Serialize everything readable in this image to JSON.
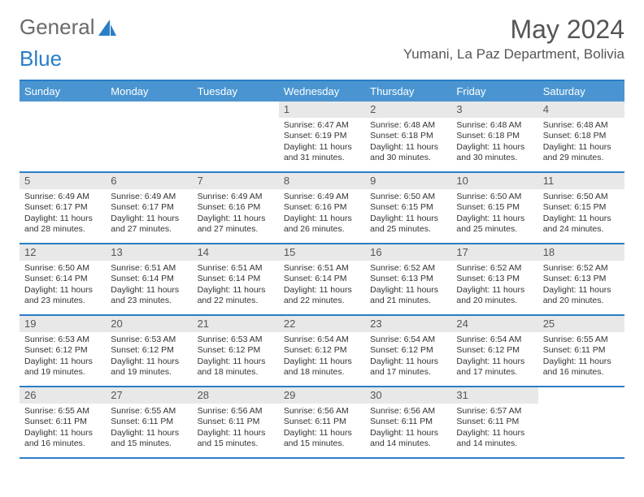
{
  "logo": {
    "text1": "General",
    "text2": "Blue"
  },
  "title": "May 2024",
  "location": "Yumani, La Paz Department, Bolivia",
  "colors": {
    "header_bg": "#4a95d1",
    "border": "#2a7ec6",
    "daynum_bg": "#e8e8e8",
    "text": "#333333",
    "title_text": "#555555",
    "logo_gray": "#6a6a6a",
    "logo_blue": "#2a7ec6"
  },
  "day_names": [
    "Sunday",
    "Monday",
    "Tuesday",
    "Wednesday",
    "Thursday",
    "Friday",
    "Saturday"
  ],
  "weeks": [
    [
      {
        "n": "",
        "sr": "",
        "ss": "",
        "dl": ""
      },
      {
        "n": "",
        "sr": "",
        "ss": "",
        "dl": ""
      },
      {
        "n": "",
        "sr": "",
        "ss": "",
        "dl": ""
      },
      {
        "n": "1",
        "sr": "Sunrise: 6:47 AM",
        "ss": "Sunset: 6:19 PM",
        "dl": "Daylight: 11 hours and 31 minutes."
      },
      {
        "n": "2",
        "sr": "Sunrise: 6:48 AM",
        "ss": "Sunset: 6:18 PM",
        "dl": "Daylight: 11 hours and 30 minutes."
      },
      {
        "n": "3",
        "sr": "Sunrise: 6:48 AM",
        "ss": "Sunset: 6:18 PM",
        "dl": "Daylight: 11 hours and 30 minutes."
      },
      {
        "n": "4",
        "sr": "Sunrise: 6:48 AM",
        "ss": "Sunset: 6:18 PM",
        "dl": "Daylight: 11 hours and 29 minutes."
      }
    ],
    [
      {
        "n": "5",
        "sr": "Sunrise: 6:49 AM",
        "ss": "Sunset: 6:17 PM",
        "dl": "Daylight: 11 hours and 28 minutes."
      },
      {
        "n": "6",
        "sr": "Sunrise: 6:49 AM",
        "ss": "Sunset: 6:17 PM",
        "dl": "Daylight: 11 hours and 27 minutes."
      },
      {
        "n": "7",
        "sr": "Sunrise: 6:49 AM",
        "ss": "Sunset: 6:16 PM",
        "dl": "Daylight: 11 hours and 27 minutes."
      },
      {
        "n": "8",
        "sr": "Sunrise: 6:49 AM",
        "ss": "Sunset: 6:16 PM",
        "dl": "Daylight: 11 hours and 26 minutes."
      },
      {
        "n": "9",
        "sr": "Sunrise: 6:50 AM",
        "ss": "Sunset: 6:15 PM",
        "dl": "Daylight: 11 hours and 25 minutes."
      },
      {
        "n": "10",
        "sr": "Sunrise: 6:50 AM",
        "ss": "Sunset: 6:15 PM",
        "dl": "Daylight: 11 hours and 25 minutes."
      },
      {
        "n": "11",
        "sr": "Sunrise: 6:50 AM",
        "ss": "Sunset: 6:15 PM",
        "dl": "Daylight: 11 hours and 24 minutes."
      }
    ],
    [
      {
        "n": "12",
        "sr": "Sunrise: 6:50 AM",
        "ss": "Sunset: 6:14 PM",
        "dl": "Daylight: 11 hours and 23 minutes."
      },
      {
        "n": "13",
        "sr": "Sunrise: 6:51 AM",
        "ss": "Sunset: 6:14 PM",
        "dl": "Daylight: 11 hours and 23 minutes."
      },
      {
        "n": "14",
        "sr": "Sunrise: 6:51 AM",
        "ss": "Sunset: 6:14 PM",
        "dl": "Daylight: 11 hours and 22 minutes."
      },
      {
        "n": "15",
        "sr": "Sunrise: 6:51 AM",
        "ss": "Sunset: 6:14 PM",
        "dl": "Daylight: 11 hours and 22 minutes."
      },
      {
        "n": "16",
        "sr": "Sunrise: 6:52 AM",
        "ss": "Sunset: 6:13 PM",
        "dl": "Daylight: 11 hours and 21 minutes."
      },
      {
        "n": "17",
        "sr": "Sunrise: 6:52 AM",
        "ss": "Sunset: 6:13 PM",
        "dl": "Daylight: 11 hours and 20 minutes."
      },
      {
        "n": "18",
        "sr": "Sunrise: 6:52 AM",
        "ss": "Sunset: 6:13 PM",
        "dl": "Daylight: 11 hours and 20 minutes."
      }
    ],
    [
      {
        "n": "19",
        "sr": "Sunrise: 6:53 AM",
        "ss": "Sunset: 6:12 PM",
        "dl": "Daylight: 11 hours and 19 minutes."
      },
      {
        "n": "20",
        "sr": "Sunrise: 6:53 AM",
        "ss": "Sunset: 6:12 PM",
        "dl": "Daylight: 11 hours and 19 minutes."
      },
      {
        "n": "21",
        "sr": "Sunrise: 6:53 AM",
        "ss": "Sunset: 6:12 PM",
        "dl": "Daylight: 11 hours and 18 minutes."
      },
      {
        "n": "22",
        "sr": "Sunrise: 6:54 AM",
        "ss": "Sunset: 6:12 PM",
        "dl": "Daylight: 11 hours and 18 minutes."
      },
      {
        "n": "23",
        "sr": "Sunrise: 6:54 AM",
        "ss": "Sunset: 6:12 PM",
        "dl": "Daylight: 11 hours and 17 minutes."
      },
      {
        "n": "24",
        "sr": "Sunrise: 6:54 AM",
        "ss": "Sunset: 6:12 PM",
        "dl": "Daylight: 11 hours and 17 minutes."
      },
      {
        "n": "25",
        "sr": "Sunrise: 6:55 AM",
        "ss": "Sunset: 6:11 PM",
        "dl": "Daylight: 11 hours and 16 minutes."
      }
    ],
    [
      {
        "n": "26",
        "sr": "Sunrise: 6:55 AM",
        "ss": "Sunset: 6:11 PM",
        "dl": "Daylight: 11 hours and 16 minutes."
      },
      {
        "n": "27",
        "sr": "Sunrise: 6:55 AM",
        "ss": "Sunset: 6:11 PM",
        "dl": "Daylight: 11 hours and 15 minutes."
      },
      {
        "n": "28",
        "sr": "Sunrise: 6:56 AM",
        "ss": "Sunset: 6:11 PM",
        "dl": "Daylight: 11 hours and 15 minutes."
      },
      {
        "n": "29",
        "sr": "Sunrise: 6:56 AM",
        "ss": "Sunset: 6:11 PM",
        "dl": "Daylight: 11 hours and 15 minutes."
      },
      {
        "n": "30",
        "sr": "Sunrise: 6:56 AM",
        "ss": "Sunset: 6:11 PM",
        "dl": "Daylight: 11 hours and 14 minutes."
      },
      {
        "n": "31",
        "sr": "Sunrise: 6:57 AM",
        "ss": "Sunset: 6:11 PM",
        "dl": "Daylight: 11 hours and 14 minutes."
      },
      {
        "n": "",
        "sr": "",
        "ss": "",
        "dl": ""
      }
    ]
  ]
}
